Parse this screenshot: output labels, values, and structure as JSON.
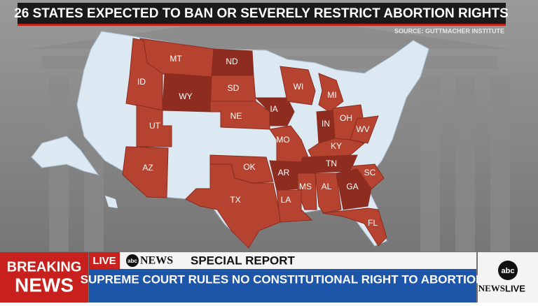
{
  "header": {
    "title": "26 STATES EXPECTED TO BAN OR SEVERELY RESTRICT ABORTION RIGHTS",
    "source": "SOURCE: GUTTMACHER INSTITUTE"
  },
  "map": {
    "states": [
      "MT",
      "ND",
      "SD",
      "WY",
      "ID",
      "NE",
      "IA",
      "WI",
      "MI",
      "IN",
      "OH",
      "WV",
      "KY",
      "UT",
      "MO",
      "AZ",
      "OK",
      "AR",
      "TN",
      "SC",
      "MS",
      "AL",
      "GA",
      "LA",
      "TX",
      "FL"
    ]
  },
  "lower_third": {
    "breaking": "BREAKING",
    "news": "NEWS",
    "live": "LIVE",
    "network": "abc",
    "network_news": "NEWS",
    "program": "SPECIAL REPORT",
    "headline": "SUPREME COURT RULES NO CONSTITUTIONAL RIGHT TO ABORTION",
    "logo": "abc",
    "logo_news": "NEWS",
    "logo_live": "LIVE"
  }
}
